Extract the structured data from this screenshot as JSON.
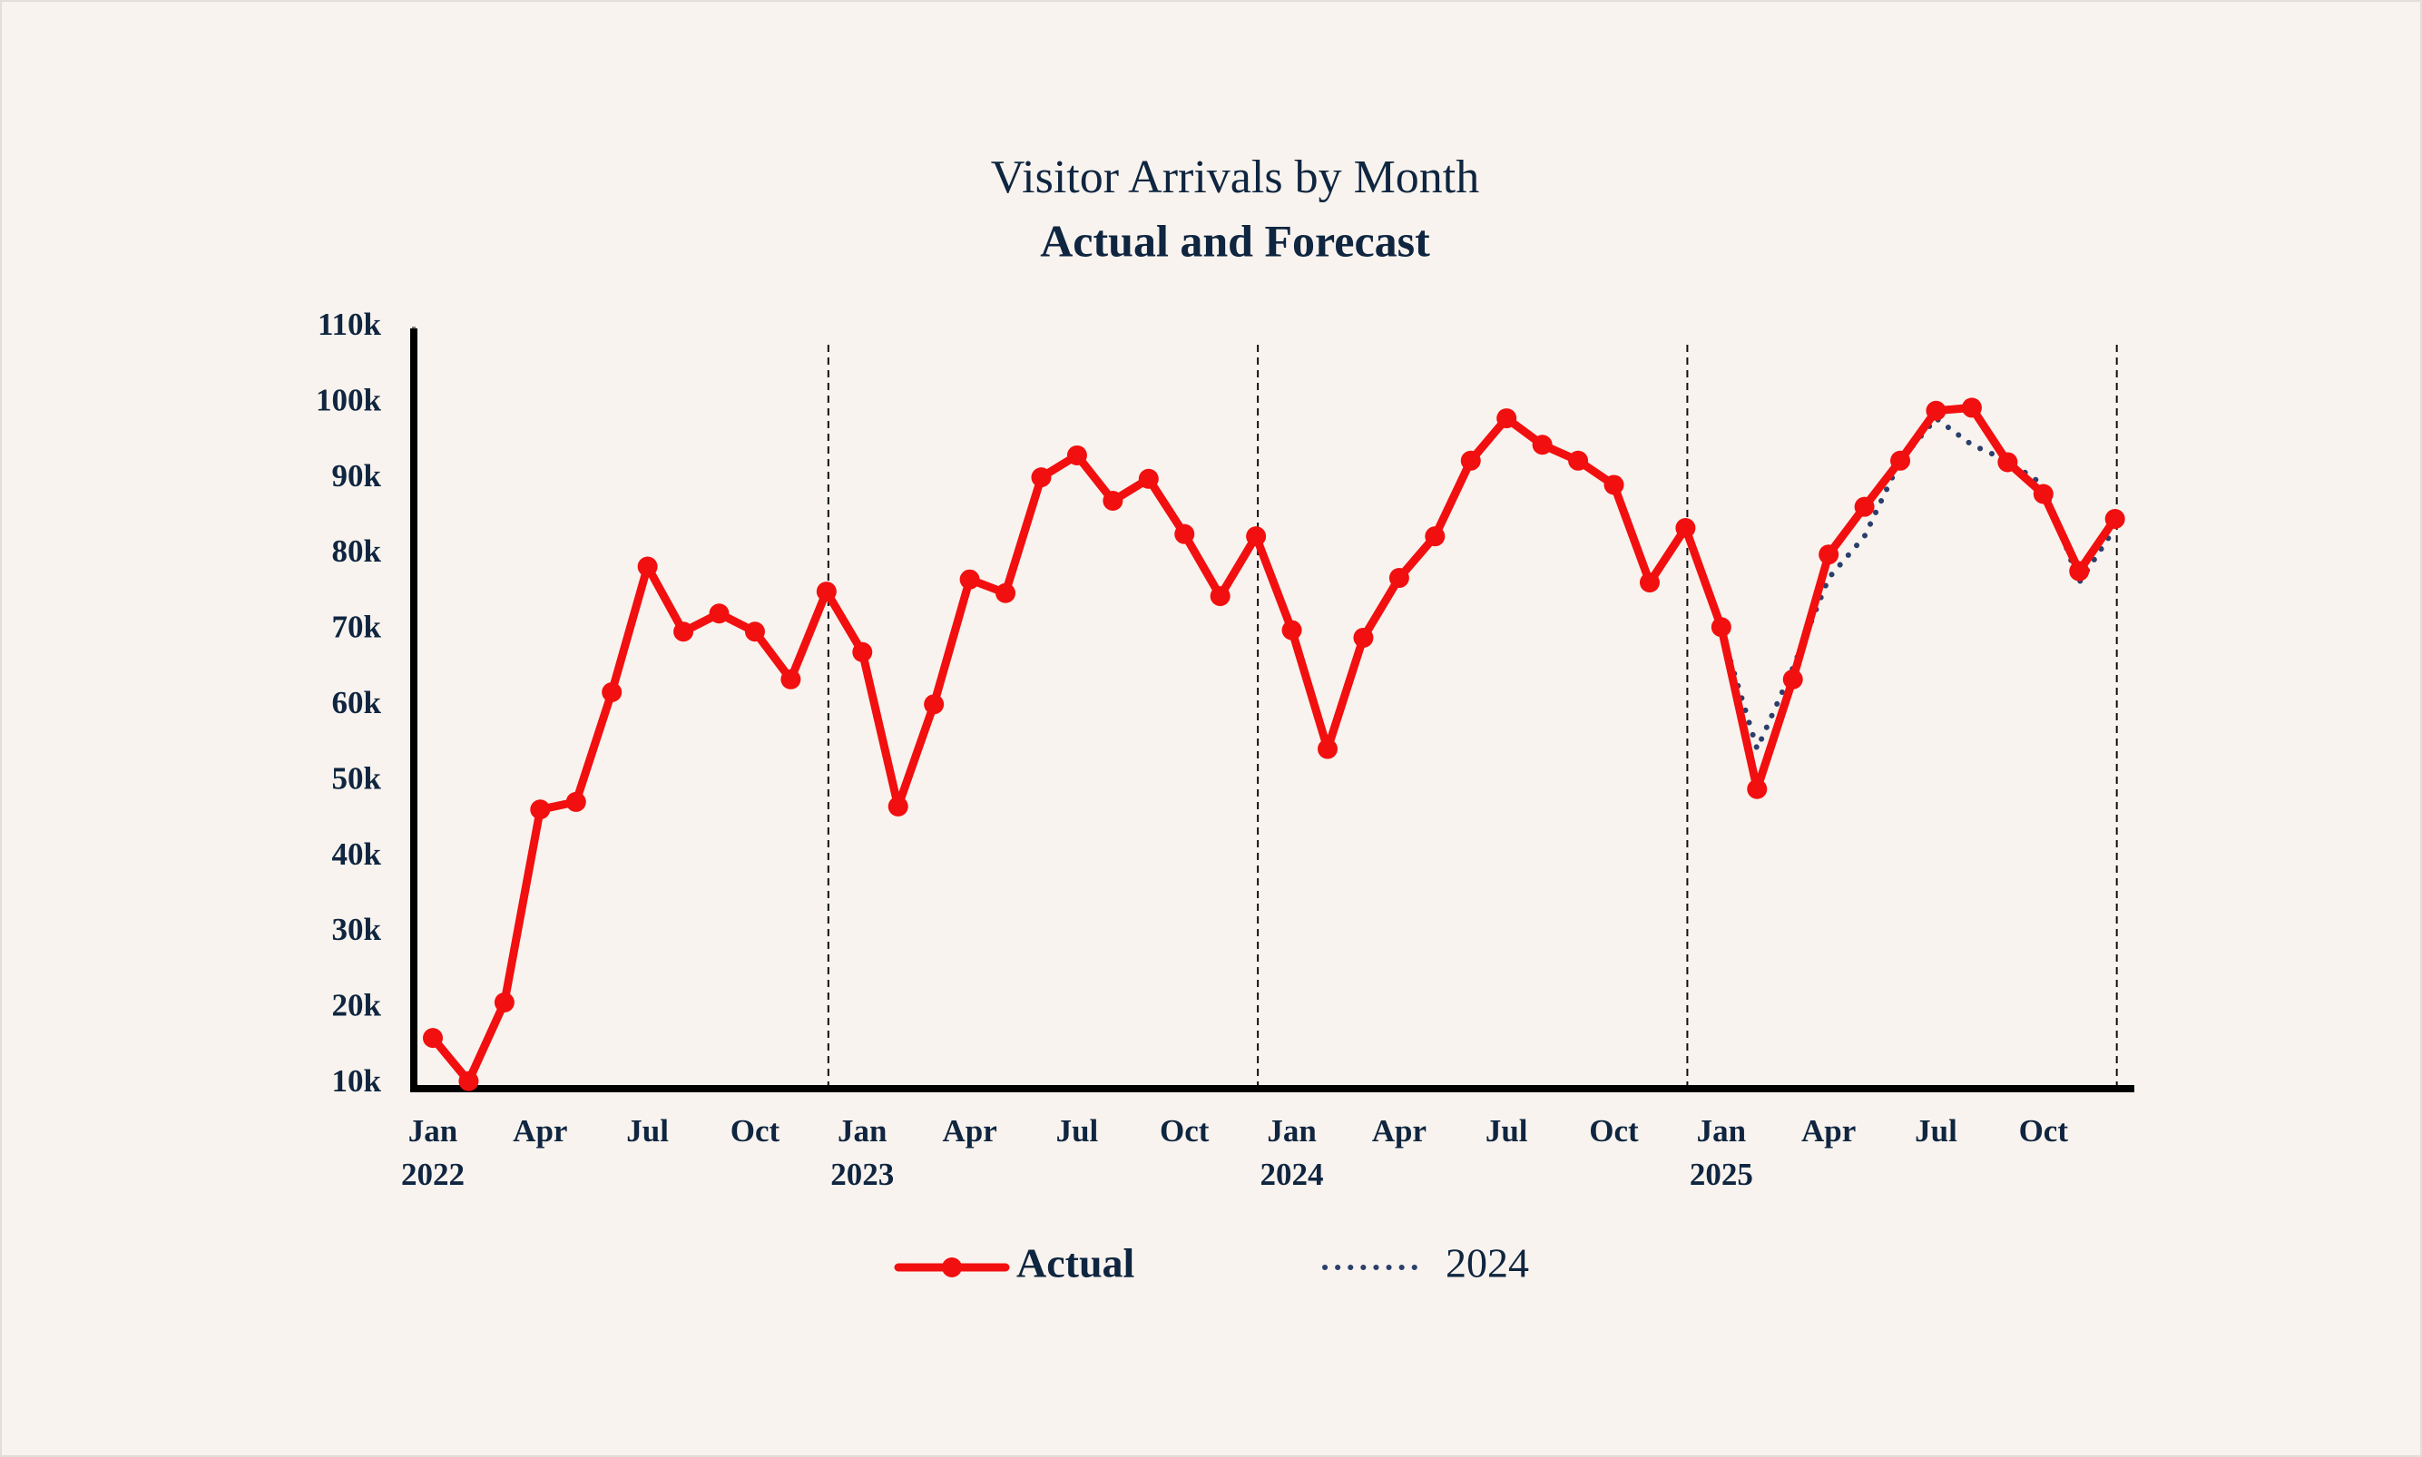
{
  "chart_data": {
    "type": "line",
    "title": "Visitor Arrivals by Month",
    "subtitle": "Actual and Forecast",
    "categories": [
      "Jan 2022",
      null,
      null,
      "Apr",
      null,
      null,
      "Jul",
      null,
      null,
      "Oct",
      null,
      null,
      "Jan 2023",
      null,
      null,
      "Apr",
      null,
      null,
      "Jul",
      null,
      null,
      "Oct",
      null,
      null,
      "Jan 2024",
      null,
      null,
      "Apr",
      null,
      null,
      "Jul",
      null,
      null,
      "Oct",
      null,
      null,
      "Jan 2025",
      null,
      null,
      "Apr",
      null,
      null,
      "Jul",
      null,
      null,
      "Oct",
      null,
      null
    ],
    "series": [
      {
        "name": "Actual",
        "color": "#f20f0f",
        "line_style": "solid",
        "markers": true,
        "values": [
          16100,
          10400,
          20800,
          46300,
          47300,
          61800,
          78400,
          69800,
          72200,
          69800,
          63500,
          75100,
          67100,
          46700,
          60200,
          76700,
          74900,
          90200,
          93100,
          87100,
          90000,
          82700,
          74500,
          82400,
          70000,
          54300,
          69000,
          76900,
          82400,
          92400,
          98000,
          94500,
          92400,
          89200,
          76300,
          83500,
          70400,
          49000,
          63500,
          80000,
          86300,
          92400,
          99000,
          99400,
          92200,
          88000,
          77800,
          84700
        ]
      },
      {
        "name": "2024",
        "color": "#2b3f6c",
        "line_style": "dotted",
        "markers": false,
        "values": [
          null,
          null,
          null,
          null,
          null,
          null,
          null,
          null,
          null,
          null,
          null,
          null,
          null,
          null,
          null,
          null,
          null,
          null,
          null,
          null,
          null,
          null,
          null,
          null,
          null,
          null,
          null,
          null,
          null,
          null,
          null,
          null,
          null,
          null,
          null,
          83500,
          70000,
          54300,
          65000,
          76900,
          82400,
          92400,
          98000,
          94500,
          92400,
          89200,
          76300,
          83500
        ]
      }
    ],
    "ylim": [
      10000,
      110000
    ],
    "yticks": [
      {
        "value": 10000,
        "label": "10k"
      },
      {
        "value": 20000,
        "label": "20k"
      },
      {
        "value": 30000,
        "label": "30k"
      },
      {
        "value": 40000,
        "label": "40k"
      },
      {
        "value": 50000,
        "label": "50k"
      },
      {
        "value": 60000,
        "label": "60k"
      },
      {
        "value": 70000,
        "label": "70k"
      },
      {
        "value": 80000,
        "label": "80k"
      },
      {
        "value": 90000,
        "label": "90k"
      },
      {
        "value": 100000,
        "label": "100k"
      },
      {
        "value": 110000,
        "label": "110k"
      }
    ],
    "grid": false,
    "legend": "bottom"
  }
}
